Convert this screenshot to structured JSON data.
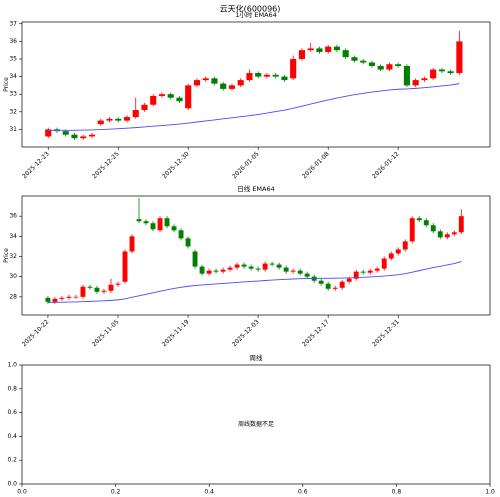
{
  "title": "云天化(600096)",
  "chart_data": [
    {
      "type": "candlestick",
      "title": "1小时 EMA64",
      "ylabel": "Price",
      "xlim": [
        -3.0,
        50.5
      ],
      "ylim": [
        30.0,
        37.1
      ],
      "yticks": [
        31,
        32,
        33,
        34,
        35,
        36,
        37
      ],
      "xticks": [
        {
          "value": 0,
          "label": "2025-12-23"
        },
        {
          "value": 8,
          "label": "2025-12-25"
        },
        {
          "value": 16,
          "label": "2025-12-30"
        },
        {
          "value": 24,
          "label": "2026-01-05"
        },
        {
          "value": 32,
          "label": "2026-01-08"
        },
        {
          "value": 40,
          "label": "2026-01-12"
        }
      ],
      "up_color": "#ff0000",
      "down_color": "#008000",
      "open": [
        30.6,
        31.0,
        30.9,
        30.7,
        30.5,
        30.6,
        31.3,
        31.5,
        31.6,
        31.5,
        31.7,
        32.1,
        32.4,
        32.9,
        33.0,
        32.8,
        32.2,
        33.5,
        33.8,
        33.9,
        33.6,
        33.3,
        33.5,
        33.8,
        34.2,
        34.0,
        34.1,
        34.0,
        33.9,
        35.0,
        35.5,
        35.6,
        35.4,
        35.7,
        35.5,
        35.1,
        34.9,
        34.8,
        34.6,
        34.4,
        34.7,
        34.6,
        33.5,
        33.8,
        33.9,
        34.4,
        34.3,
        34.2
      ],
      "high": [
        31.1,
        31.1,
        31.0,
        30.8,
        30.7,
        30.8,
        31.6,
        31.7,
        31.7,
        31.8,
        32.8,
        32.5,
        33.0,
        33.1,
        33.1,
        32.9,
        33.6,
        33.9,
        34.0,
        34.0,
        33.7,
        33.6,
        33.9,
        34.4,
        34.3,
        34.2,
        34.2,
        34.1,
        35.2,
        35.6,
        35.9,
        35.7,
        35.8,
        35.8,
        35.6,
        35.2,
        35.0,
        34.9,
        34.7,
        34.8,
        34.8,
        34.7,
        33.9,
        34.0,
        34.5,
        34.5,
        34.4,
        36.6
      ],
      "low": [
        30.5,
        30.8,
        30.6,
        30.4,
        30.4,
        30.5,
        31.2,
        31.4,
        31.4,
        31.4,
        31.6,
        32.0,
        32.3,
        32.8,
        32.7,
        32.5,
        32.1,
        33.4,
        33.7,
        33.5,
        33.2,
        33.2,
        33.4,
        33.7,
        33.9,
        33.9,
        33.9,
        33.7,
        33.8,
        34.9,
        35.4,
        35.3,
        35.3,
        35.4,
        35.0,
        34.8,
        34.7,
        34.5,
        34.3,
        34.3,
        34.5,
        33.4,
        33.4,
        33.7,
        33.8,
        34.2,
        34.1,
        34.1
      ],
      "close": [
        31.0,
        30.9,
        30.7,
        30.5,
        30.6,
        30.7,
        31.5,
        31.6,
        31.5,
        31.7,
        32.1,
        32.4,
        32.9,
        33.0,
        32.8,
        32.6,
        33.5,
        33.8,
        33.9,
        33.6,
        33.3,
        33.5,
        33.8,
        34.2,
        34.0,
        34.1,
        34.0,
        33.8,
        35.0,
        35.5,
        35.6,
        35.4,
        35.7,
        35.5,
        35.1,
        34.9,
        34.8,
        34.6,
        34.4,
        34.7,
        34.6,
        33.5,
        33.8,
        33.9,
        34.4,
        34.3,
        34.2,
        36.0
      ],
      "ema_color": "#4a4aff",
      "ema": [
        30.95,
        30.95,
        30.95,
        30.95,
        30.96,
        30.97,
        30.99,
        31.01,
        31.04,
        31.07,
        31.1,
        31.14,
        31.18,
        31.22,
        31.26,
        31.3,
        31.36,
        31.42,
        31.48,
        31.54,
        31.6,
        31.66,
        31.72,
        31.78,
        31.85,
        31.93,
        32.01,
        32.09,
        32.2,
        32.32,
        32.44,
        32.56,
        32.67,
        32.78,
        32.88,
        32.97,
        33.05,
        33.12,
        33.18,
        33.24,
        33.28,
        33.3,
        33.33,
        33.37,
        33.42,
        33.47,
        33.52,
        33.6
      ]
    },
    {
      "type": "candlestick",
      "title": "日线 EMA64",
      "ylabel": "Price",
      "xlim": [
        -3.7,
        63.1
      ],
      "ylim": [
        26.2,
        38.0
      ],
      "yticks": [
        28,
        30,
        32,
        34,
        36
      ],
      "xticks": [
        {
          "value": 0,
          "label": "2025-10-22"
        },
        {
          "value": 10,
          "label": "2025-11-05"
        },
        {
          "value": 20,
          "label": "2025-11-19"
        },
        {
          "value": 30,
          "label": "2025-12-03"
        },
        {
          "value": 40,
          "label": "2025-12-17"
        },
        {
          "value": 50,
          "label": "2025-12-31"
        }
      ],
      "up_color": "#ff0000",
      "down_color": "#008000",
      "open": [
        27.9,
        27.5,
        27.8,
        27.9,
        28.0,
        28.0,
        29.0,
        28.9,
        28.5,
        28.6,
        29.2,
        29.5,
        32.5,
        35.7,
        35.5,
        35.3,
        34.6,
        35.8,
        35.0,
        34.6,
        33.8,
        32.5,
        31.0,
        30.3,
        30.6,
        30.5,
        30.7,
        30.9,
        31.2,
        31.0,
        30.8,
        30.7,
        31.3,
        31.2,
        30.9,
        30.5,
        30.6,
        30.3,
        30.0,
        29.6,
        29.3,
        28.8,
        28.9,
        29.5,
        29.8,
        30.5,
        30.4,
        30.6,
        30.8,
        31.8,
        32.3,
        32.7,
        33.5,
        35.8,
        35.6,
        35.1,
        34.5,
        33.9,
        34.2,
        34.4
      ],
      "high": [
        28.1,
        28.0,
        28.1,
        28.2,
        28.2,
        29.2,
        29.2,
        29.1,
        28.8,
        29.8,
        29.5,
        32.7,
        34.2,
        37.8,
        35.7,
        35.5,
        36.0,
        36.0,
        35.2,
        34.8,
        34.0,
        32.7,
        31.2,
        30.8,
        30.8,
        30.9,
        31.1,
        31.4,
        31.4,
        31.2,
        31.0,
        31.5,
        31.5,
        31.4,
        31.1,
        30.8,
        30.8,
        30.5,
        30.2,
        29.8,
        29.5,
        29.1,
        29.7,
        30.0,
        30.7,
        30.7,
        30.8,
        31.0,
        32.0,
        32.5,
        32.9,
        33.7,
        36.0,
        36.0,
        35.8,
        35.3,
        34.7,
        34.4,
        34.6,
        36.7
      ],
      "low": [
        27.3,
        27.3,
        27.6,
        27.7,
        27.8,
        27.8,
        28.7,
        28.3,
        28.3,
        28.4,
        29.0,
        29.3,
        32.3,
        35.3,
        35.1,
        34.5,
        34.4,
        34.8,
        34.4,
        33.6,
        32.8,
        30.8,
        30.1,
        30.1,
        30.3,
        30.3,
        30.5,
        30.7,
        30.8,
        30.6,
        30.5,
        30.5,
        31.0,
        30.7,
        30.3,
        30.3,
        30.1,
        29.8,
        29.4,
        29.1,
        28.6,
        28.6,
        28.7,
        29.3,
        29.6,
        30.2,
        30.2,
        30.4,
        30.6,
        31.6,
        32.1,
        32.5,
        33.3,
        35.4,
        34.9,
        34.3,
        33.7,
        33.7,
        34.0,
        34.2
      ],
      "close": [
        27.5,
        27.8,
        27.9,
        28.0,
        28.0,
        29.0,
        28.9,
        28.5,
        28.6,
        29.2,
        29.3,
        32.5,
        34.0,
        35.5,
        35.3,
        34.7,
        35.8,
        35.0,
        34.6,
        33.8,
        33.0,
        31.0,
        30.3,
        30.6,
        30.5,
        30.7,
        30.9,
        31.2,
        31.0,
        30.8,
        30.7,
        31.3,
        31.2,
        30.9,
        30.5,
        30.6,
        30.3,
        30.0,
        29.6,
        29.3,
        28.8,
        28.9,
        29.5,
        29.8,
        30.5,
        30.4,
        30.6,
        30.8,
        31.8,
        32.3,
        32.7,
        33.5,
        35.8,
        35.6,
        35.1,
        34.5,
        33.9,
        34.2,
        34.4,
        36.0
      ],
      "ema_color": "#4a4aff",
      "ema": [
        27.45,
        27.46,
        27.47,
        27.48,
        27.5,
        27.52,
        27.55,
        27.58,
        27.61,
        27.65,
        27.7,
        27.8,
        27.95,
        28.1,
        28.25,
        28.4,
        28.55,
        28.7,
        28.83,
        28.95,
        29.05,
        29.12,
        29.18,
        29.23,
        29.28,
        29.33,
        29.38,
        29.43,
        29.48,
        29.53,
        29.57,
        29.62,
        29.66,
        29.7,
        29.74,
        29.77,
        29.8,
        29.82,
        29.83,
        29.84,
        29.84,
        29.85,
        29.86,
        29.88,
        29.91,
        29.94,
        29.97,
        30.01,
        30.06,
        30.12,
        30.2,
        30.3,
        30.45,
        30.6,
        30.75,
        30.9,
        31.03,
        31.17,
        31.3,
        31.5
      ]
    },
    {
      "type": "empty",
      "title": "周线",
      "annotation": "周线数据不足",
      "xlim": [
        0,
        1
      ],
      "ylim": [
        0,
        1
      ],
      "xticks": [
        {
          "value": 0,
          "label": "0.0"
        },
        {
          "value": 0.2,
          "label": "0.2"
        },
        {
          "value": 0.4,
          "label": "0.4"
        },
        {
          "value": 0.6,
          "label": "0.6"
        },
        {
          "value": 0.8,
          "label": "0.8"
        },
        {
          "value": 1,
          "label": "1.0"
        }
      ],
      "yticks": [
        {
          "value": 0,
          "label": "0.0"
        },
        {
          "value": 0.2,
          "label": "0.2"
        },
        {
          "value": 0.4,
          "label": "0.4"
        },
        {
          "value": 0.6,
          "label": "0.6"
        },
        {
          "value": 0.8,
          "label": "0.8"
        },
        {
          "value": 1,
          "label": "1.0"
        }
      ]
    }
  ]
}
